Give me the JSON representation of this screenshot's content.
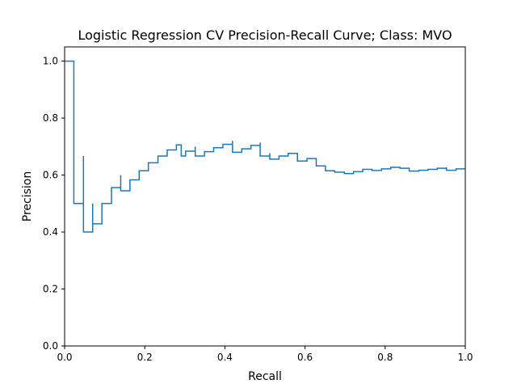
{
  "chart_data": {
    "type": "line",
    "title": "Logistic Regression CV Precision-Recall Curve; Class: MVO",
    "xlabel": "Recall",
    "ylabel": "Precision",
    "xlim": [
      0.0,
      1.0
    ],
    "ylim": [
      0.0,
      1.05
    ],
    "xticks": [
      0.0,
      0.2,
      0.4,
      0.6,
      0.8,
      1.0
    ],
    "xtick_labels": [
      "0.0",
      "0.2",
      "0.4",
      "0.6",
      "0.8",
      "1.0"
    ],
    "yticks": [
      0.0,
      0.2,
      0.4,
      0.6,
      0.8,
      1.0
    ],
    "ytick_labels": [
      "0.0",
      "0.2",
      "0.4",
      "0.6",
      "0.8",
      "1.0"
    ],
    "grid": false,
    "legend": "none",
    "series": [
      {
        "color": "#1f77b4",
        "step": "post",
        "recall": [
          0.0,
          0.023,
          0.023,
          0.047,
          0.047,
          0.07,
          0.07,
          0.093,
          0.117,
          0.14,
          0.14,
          0.163,
          0.186,
          0.209,
          0.233,
          0.256,
          0.279,
          0.291,
          0.302,
          0.326,
          0.326,
          0.349,
          0.372,
          0.395,
          0.419,
          0.419,
          0.442,
          0.465,
          0.488,
          0.488,
          0.512,
          0.512,
          0.535,
          0.558,
          0.581,
          0.581,
          0.605,
          0.628,
          0.651,
          0.674,
          0.698,
          0.721,
          0.744,
          0.767,
          0.791,
          0.814,
          0.837,
          0.86,
          0.86,
          0.884,
          0.907,
          0.93,
          0.953,
          0.953,
          0.977
        ],
        "precision": [
          1.0,
          1.0,
          0.5,
          0.667,
          0.4,
          0.5,
          0.429,
          0.5,
          0.556,
          0.6,
          0.545,
          0.583,
          0.615,
          0.643,
          0.667,
          0.688,
          0.706,
          0.667,
          0.684,
          0.7,
          0.667,
          0.682,
          0.696,
          0.708,
          0.72,
          0.68,
          0.692,
          0.704,
          0.714,
          0.667,
          0.677,
          0.656,
          0.667,
          0.676,
          0.667,
          0.649,
          0.658,
          0.632,
          0.615,
          0.61,
          0.605,
          0.612,
          0.62,
          0.616,
          0.622,
          0.627,
          0.624,
          0.62,
          0.614,
          0.617,
          0.62,
          0.624,
          0.627,
          0.617,
          0.622
        ]
      }
    ]
  }
}
